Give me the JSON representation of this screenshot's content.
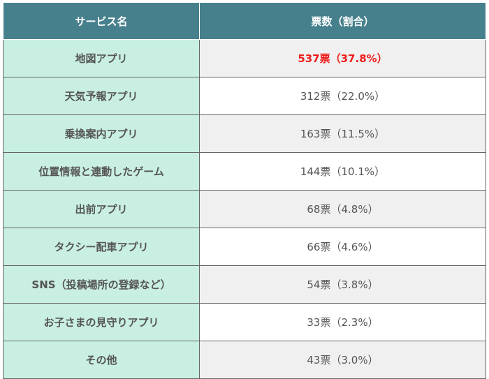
{
  "header": {
    "service": "サービス名",
    "votes": "票数（割合）"
  },
  "rows": [
    {
      "name": "地図アプリ",
      "value": "537票（37.8%）",
      "highlight": true
    },
    {
      "name": "天気予報アプリ",
      "value": "312票（22.0%）"
    },
    {
      "name": "乗換案内アプリ",
      "value": "163票（11.5%）"
    },
    {
      "name": "位置情報と連動したゲーム",
      "value": "144票（10.1%）"
    },
    {
      "name": "出前アプリ",
      "value": "68票（4.8%）"
    },
    {
      "name": "タクシー配車アプリ",
      "value": "66票（4.6%）"
    },
    {
      "name": "SNS（投稿場所の登録など）",
      "value": "54票（3.8%）"
    },
    {
      "name": "お子さまの見守りアプリ",
      "value": "33票（2.3%）"
    },
    {
      "name": "その他",
      "value": "43票（3.0%）"
    }
  ],
  "colors": {
    "header": "#46808c",
    "name_cell": "#c9efe2",
    "highlight": "#ee1c1c"
  }
}
